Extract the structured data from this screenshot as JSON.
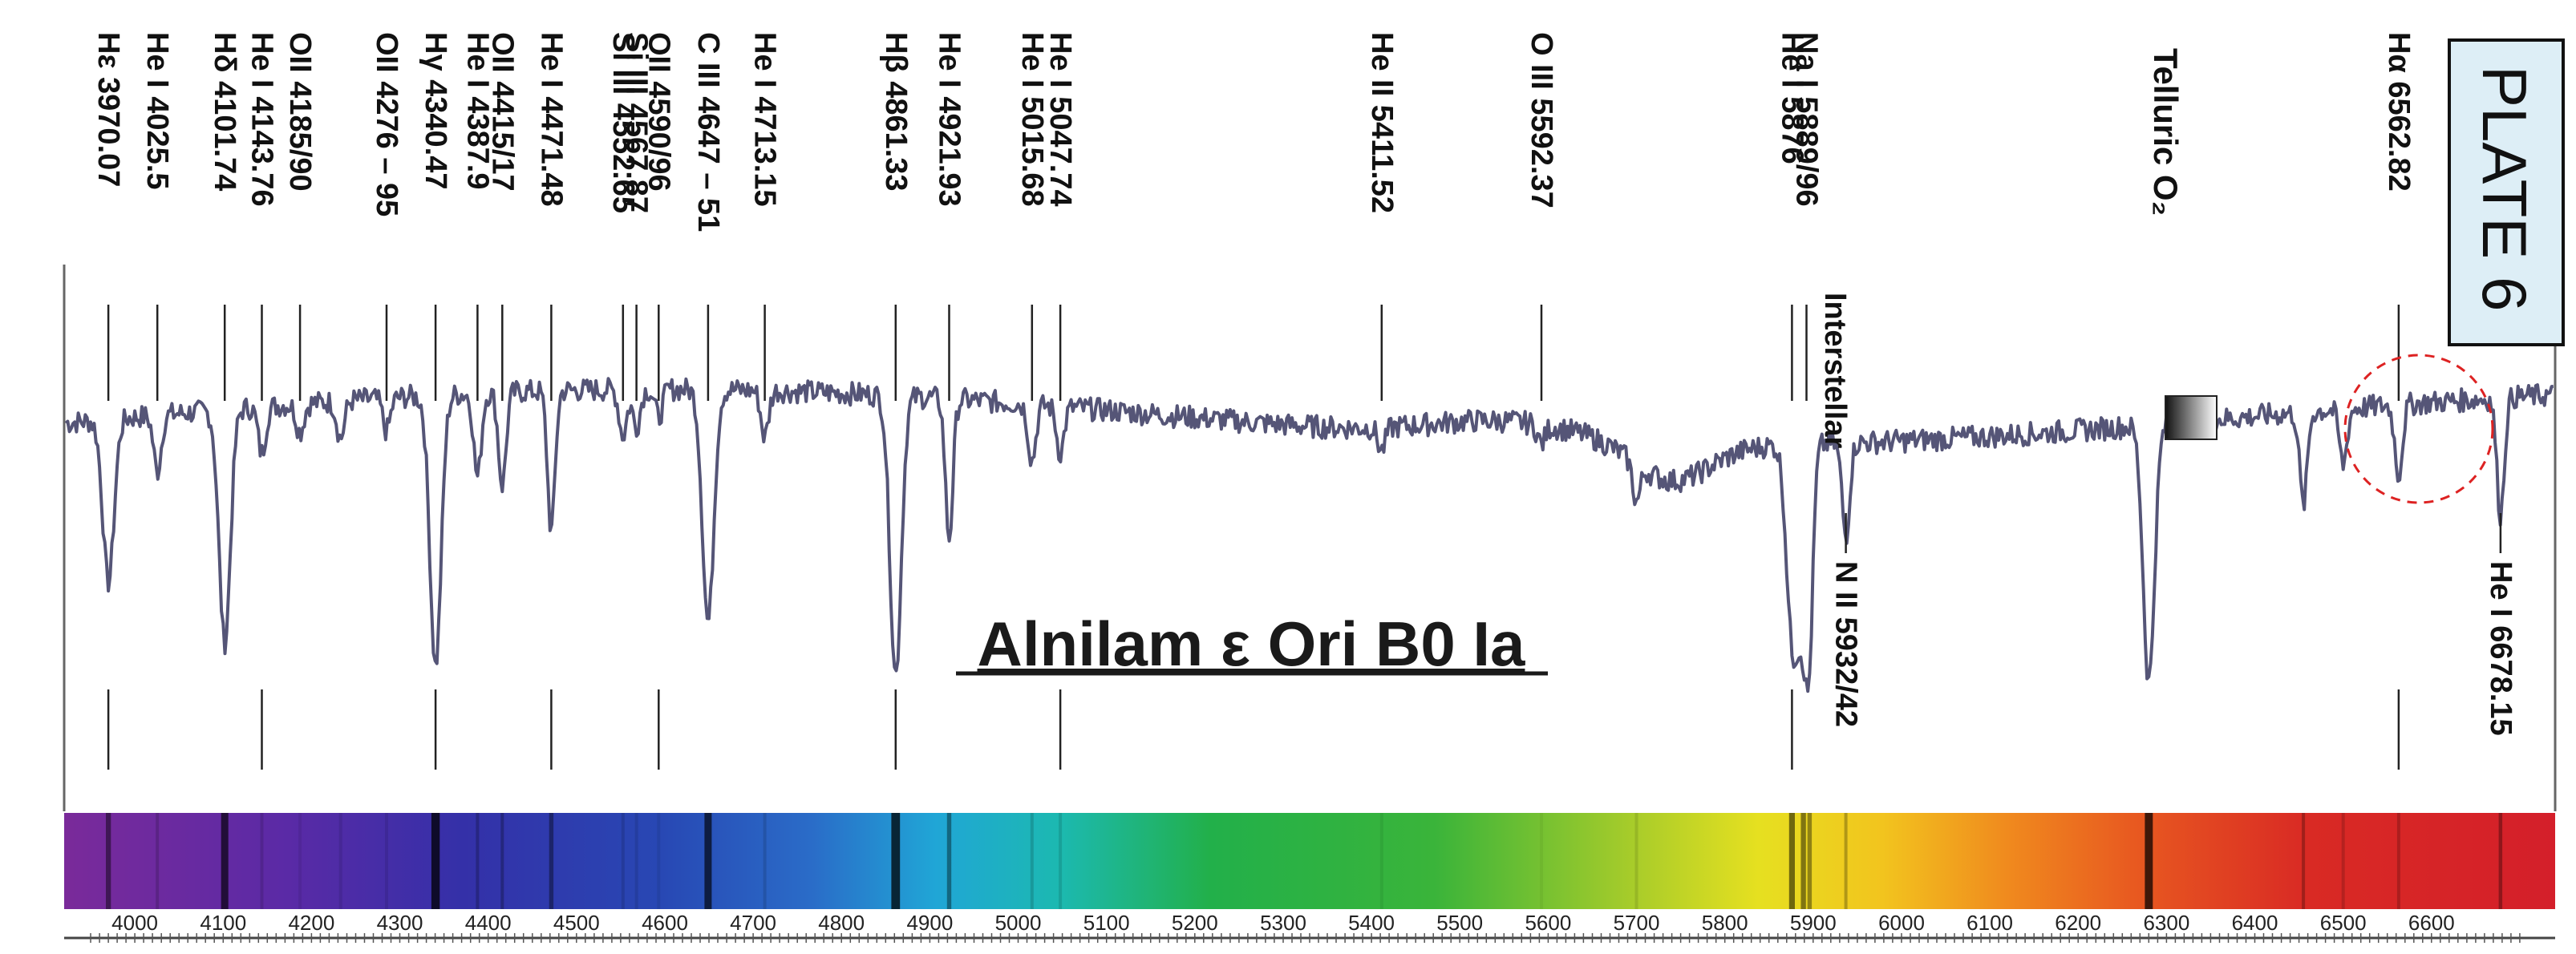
{
  "plate_label": "PLATE 6",
  "chart_data": {
    "type": "line",
    "title": "Alnilam ε Ori B0 Ia",
    "xlabel": "",
    "ylabel": "",
    "xlim": [
      3920,
      6740
    ],
    "x_ticks": [
      4000,
      4100,
      4200,
      4300,
      4400,
      4500,
      4600,
      4700,
      4800,
      4900,
      5000,
      5100,
      5200,
      5300,
      5400,
      5500,
      5600,
      5700,
      5800,
      5900,
      6000,
      6100,
      6200,
      6300,
      6400,
      6500,
      6600
    ],
    "grid": false,
    "annotation_interstellar": "Interstellar",
    "annotation_telluric": "Telluric O₂",
    "line_labels": [
      {
        "text": "Hε 3970.07",
        "wavelength": 3970.07
      },
      {
        "text": "He I 4025.5",
        "wavelength": 4025.5
      },
      {
        "text": "Hδ 4101.74",
        "wavelength": 4101.74
      },
      {
        "text": "He I 4143.76",
        "wavelength": 4143.76
      },
      {
        "text": "OII 4185/90",
        "wavelength": 4187
      },
      {
        "text": "OII 4276 – 95",
        "wavelength": 4285
      },
      {
        "text": "Hγ 4340.47",
        "wavelength": 4340.47
      },
      {
        "text": "He I 4387.9",
        "wavelength": 4387.9
      },
      {
        "text": "OII 4415/17",
        "wavelength": 4416
      },
      {
        "text": "He I 4471.48",
        "wavelength": 4471.48
      },
      {
        "text": "Si III 4552.65",
        "wavelength": 4552.65
      },
      {
        "text": "Si III 4567.87",
        "wavelength": 4567.87
      },
      {
        "text": "OII 4590/96",
        "wavelength": 4593
      },
      {
        "text": "C III 4647 – 51",
        "wavelength": 4649
      },
      {
        "text": "He I 4713.15",
        "wavelength": 4713.15
      },
      {
        "text": "Hβ 4861.33",
        "wavelength": 4861.33
      },
      {
        "text": "He I 4921.93",
        "wavelength": 4921.93
      },
      {
        "text": "He I 5015.68",
        "wavelength": 5015.68
      },
      {
        "text": "He I 5047.74",
        "wavelength": 5047.74
      },
      {
        "text": "He II 5411.52",
        "wavelength": 5411.52
      },
      {
        "text": "O III  5592.37",
        "wavelength": 5592.37
      },
      {
        "text": "He I 5876",
        "wavelength": 5876
      },
      {
        "text": "Na I 5889/96",
        "wavelength": 5892.5
      },
      {
        "text": "N II 5932/42",
        "wavelength": 5937
      },
      {
        "text": "Hα 6562.82",
        "wavelength": 6562.82
      },
      {
        "text": "He I 6678.15",
        "wavelength": 6678.15
      }
    ],
    "continuum_level": 0.62,
    "absorption_lines": [
      {
        "wavelength": 3970.07,
        "depth": 0.35
      },
      {
        "wavelength": 4025.5,
        "depth": 0.12
      },
      {
        "wavelength": 4101.74,
        "depth": 0.5
      },
      {
        "wavelength": 4143.76,
        "depth": 0.1
      },
      {
        "wavelength": 4187,
        "depth": 0.06
      },
      {
        "wavelength": 4233,
        "depth": 0.08
      },
      {
        "wavelength": 4285,
        "depth": 0.07
      },
      {
        "wavelength": 4340.47,
        "depth": 0.58
      },
      {
        "wavelength": 4387.9,
        "depth": 0.18
      },
      {
        "wavelength": 4416,
        "depth": 0.2
      },
      {
        "wavelength": 4471.48,
        "depth": 0.3
      },
      {
        "wavelength": 4552.65,
        "depth": 0.1
      },
      {
        "wavelength": 4567.87,
        "depth": 0.08
      },
      {
        "wavelength": 4593,
        "depth": 0.06
      },
      {
        "wavelength": 4649,
        "depth": 0.5
      },
      {
        "wavelength": 4713.15,
        "depth": 0.1
      },
      {
        "wavelength": 4861.33,
        "depth": 0.6
      },
      {
        "wavelength": 4921.93,
        "depth": 0.3
      },
      {
        "wavelength": 5015.68,
        "depth": 0.12
      },
      {
        "wavelength": 5047.74,
        "depth": 0.1
      },
      {
        "wavelength": 5411.52,
        "depth": 0.05
      },
      {
        "wavelength": 5592.37,
        "depth": 0.04
      },
      {
        "wavelength": 5700,
        "depth": 0.08
      },
      {
        "wavelength": 5876,
        "depth": 0.4
      },
      {
        "wavelength": 5889,
        "depth": 0.35
      },
      {
        "wavelength": 5896,
        "depth": 0.3
      },
      {
        "wavelength": 5937,
        "depth": 0.2
      },
      {
        "wavelength": 6280,
        "depth": 0.55
      },
      {
        "wavelength": 6455,
        "depth": 0.2
      },
      {
        "wavelength": 6500,
        "depth": 0.12
      },
      {
        "wavelength": 6562.82,
        "depth": 0.15
      },
      {
        "wavelength": 6678.15,
        "depth": 0.25
      }
    ]
  }
}
